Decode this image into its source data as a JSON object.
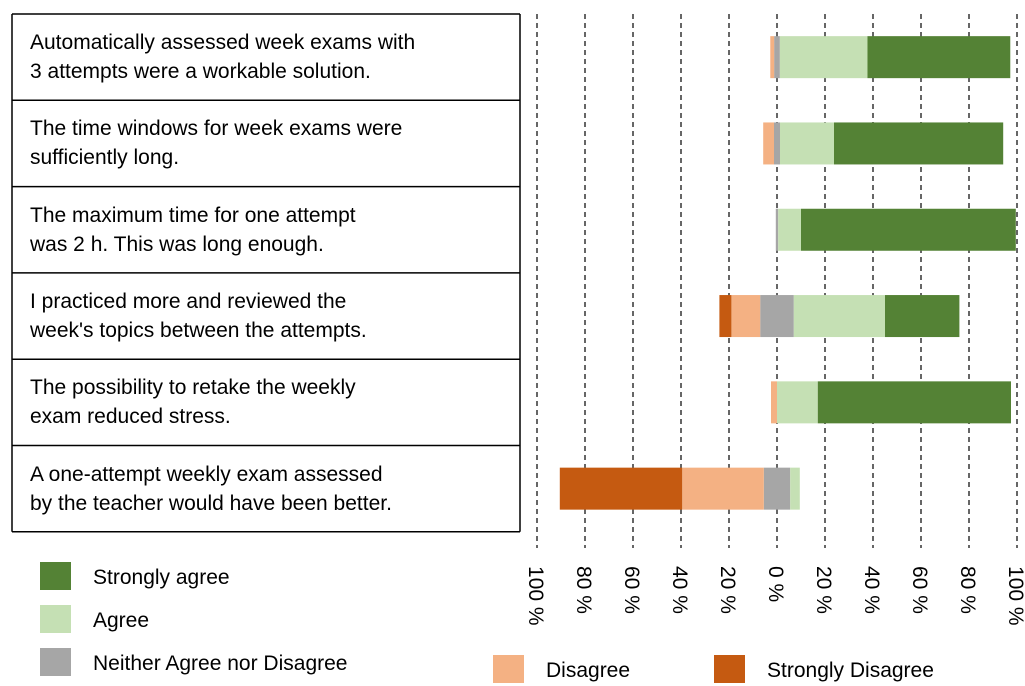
{
  "chart_data": {
    "type": "diverging_bar",
    "categories": [
      "Automatically assessed week exams with\n3 attempts were a workable solution.",
      "The time windows for week exams were\nsufficiently long.",
      "The maximum  time for one attempt\nwas 2 h. This was long enough.",
      "I practiced more and reviewed the\nweek's topics between the attempts.",
      "The possibility to retake the weekly\nexam reduced stress.",
      "A one-attempt weekly exam assessed\nby the teacher would have been better."
    ],
    "series": [
      {
        "name": "Strongly Disagree",
        "color": "#c55a11",
        "values": [
          0,
          0,
          0,
          5,
          0,
          51
        ]
      },
      {
        "name": "Disagree",
        "color": "#f4b183",
        "values": [
          1.6,
          4.5,
          0,
          12,
          2.5,
          34
        ]
      },
      {
        "name": "Neither Agree nor Disagree",
        "color": "#a6a6a6",
        "values": [
          2.4,
          2.5,
          1,
          14,
          0,
          11
        ]
      },
      {
        "name": "Agree",
        "color": "#c5e0b4",
        "values": [
          36.5,
          22.5,
          9.5,
          38,
          17,
          4
        ]
      },
      {
        "name": "Strongly agree",
        "color": "#548235",
        "values": [
          59.5,
          70.5,
          89.5,
          31,
          80.5,
          0
        ]
      }
    ],
    "xlim": [
      -100,
      100
    ],
    "xticks": [
      {
        "value": -100,
        "label": "100 %"
      },
      {
        "value": -80,
        "label": "80 %"
      },
      {
        "value": -60,
        "label": "60 %"
      },
      {
        "value": -40,
        "label": "40 %"
      },
      {
        "value": -20,
        "label": "20 %"
      },
      {
        "value": 0,
        "label": "0 %"
      },
      {
        "value": 20,
        "label": "20 %"
      },
      {
        "value": 40,
        "label": "40 %"
      },
      {
        "value": 60,
        "label": "60 %"
      },
      {
        "value": 80,
        "label": "80 %"
      },
      {
        "value": 100,
        "label": "100 %"
      }
    ],
    "grid": true
  }
}
